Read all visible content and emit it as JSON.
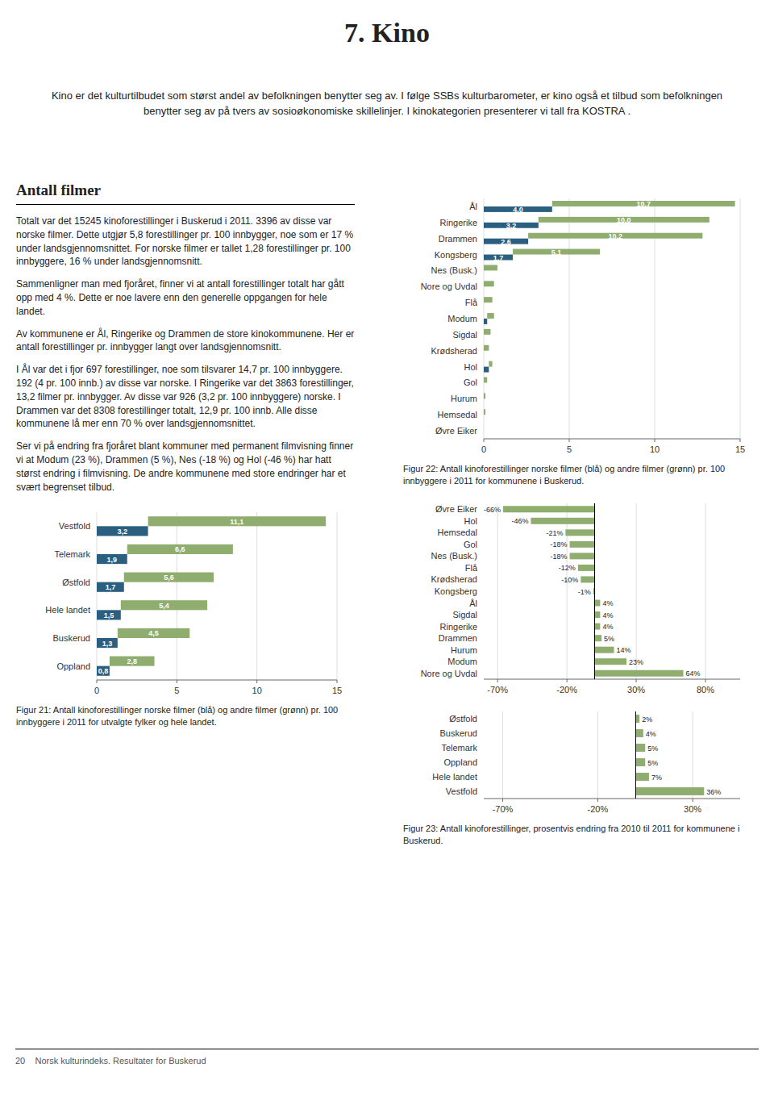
{
  "title": "7. Kino",
  "intro_text": "Kino er det kulturtilbudet som størst andel av befolkningen benytter seg av. I følge SSBs kulturbarometer, er kino også et tilbud som befolkningen benytter seg av på tvers av sosioøkonomiske skillelinjer. I kinokategorien presenterer vi tall fra KOSTRA .",
  "section_title": "Antall filmer",
  "section_texts": [
    "Totalt var det 15245 kinoforestillinger i Buskerud i 2011. 3396 av disse var norske filmer. Dette utgjør 5,8 forestillinger pr. 100 innbygger, noe som er 17 % under landsgjennomsnittet. For norske filmer er tallet 1,28 forestillinger pr. 100 innbyggere, 16 % under landsgjennomsnitt.",
    "Sammenligner man med fjoråret, finner vi at antall forestillinger totalt har gått opp med 4 %. Dette er noe lavere enn den generelle oppgangen for hele landet.",
    "Av kommunene er Ål, Ringerike og Drammen de store kinokommunene. Her er antall forestillinger pr. innbygger langt over landsgjennomsnitt.",
    "I Ål var det i fjor 697 forestillinger, noe som tilsvarer 14,7 pr. 100 innbyggere. 192 (4 pr. 100 innb.) av disse var norske. I Ringerike var det 3863 forestillinger, 13,2 filmer pr. innbygger. Av disse var 926 (3,2 pr. 100 innbyggere) norske. I Drammen var det 8308 forestillinger totalt, 12,9 pr. 100 innb. Alle disse kommunene lå mer enn 70 % over landsgjennomsnittet.",
    "Ser vi på endring fra fjoråret blant kommuner med permanent filmvisning finner vi at Modum (23 %), Drammen (5 %), Nes (-18 %) og Hol (-46 %) har hatt størst endring i filmvisning. De andre kommunene med store endringer har et svært begrenset tilbud."
  ],
  "footer_text": "20    Norsk kulturindeks. Resultater for Buskerud",
  "chart_data": [
    {
      "type": "bar",
      "orientation": "horizontal",
      "stacked": true,
      "data_labels": true,
      "grid": true,
      "title": "Figur 22: Antall kinoforestillinger norske filmer (blå) og andre filmer (grønn) pr. 100 innbyggere i 2011 for kommunene i Buskerud.",
      "categories": [
        "Øvre Eiker",
        "Hemsedal",
        "Hurum",
        "Gol",
        "Hol",
        "Krødsherad",
        "Sigdal",
        "Modum",
        "Flå",
        "Nore og Uvdal",
        "Nes (Busk.)",
        "Kongsberg",
        "Drammen",
        "Ringerike",
        "Ål"
      ],
      "series": [
        {
          "color": "#2a5f7f",
          "values": [
            0.0,
            0.0,
            0.0,
            0.0,
            0.3,
            0.0,
            0.0,
            0.2,
            0.0,
            0.0,
            0.0,
            1.7,
            2.6,
            3.2,
            4.0
          ],
          "value_labels": [
            null,
            null,
            null,
            null,
            null,
            null,
            null,
            null,
            null,
            null,
            null,
            "1,7",
            "2,6",
            "3,2",
            "4,0"
          ]
        },
        {
          "color": "#8fad6e",
          "values": [
            0.0,
            0.1,
            0.1,
            0.2,
            0.2,
            0.3,
            0.4,
            0.4,
            0.5,
            0.6,
            0.8,
            5.1,
            10.2,
            10.0,
            10.7
          ],
          "value_labels": [
            null,
            null,
            null,
            null,
            null,
            null,
            null,
            null,
            null,
            null,
            null,
            "5,1",
            "10,2",
            "10,0",
            "10,7"
          ]
        }
      ],
      "xlim": [
        0,
        15
      ],
      "xticks": [
        0,
        5,
        10,
        15
      ]
    },
    {
      "type": "bar",
      "orientation": "horizontal",
      "data_labels": true,
      "grid": true,
      "categories": [
        "Nore og Uvdal",
        "Modum",
        "Hurum",
        "Drammen",
        "Ringerike",
        "Sigdal",
        "Ål",
        "Kongsberg",
        "Krødsherad",
        "Flå",
        "Nes (Busk.)",
        "Gol",
        "Hemsedal",
        "Hol",
        "Øvre Eiker"
      ],
      "series": [
        {
          "color": "#8fad6e",
          "values": [
            64,
            23,
            14,
            5,
            4,
            4,
            4,
            -1,
            -10,
            -12,
            -18,
            -18,
            -21,
            -46,
            -66
          ],
          "value_labels": [
            "64%",
            "23%",
            "14%",
            "5%",
            "4%",
            "4%",
            "4%",
            "-1%",
            "-10%",
            "-12%",
            "-18%",
            "-18%",
            "-21%",
            "-46%",
            "-66%"
          ]
        }
      ],
      "xlim": [
        -80,
        105
      ],
      "xticks": [
        {
          "value": -70,
          "label": "-70%"
        },
        {
          "value": -20,
          "label": "-20%"
        },
        {
          "value": 30,
          "label": "30%"
        },
        {
          "value": 80,
          "label": "80%"
        }
      ]
    },
    {
      "type": "bar",
      "orientation": "horizontal",
      "data_labels": true,
      "grid": true,
      "title": "Figur 23: Antall kinoforestillinger, prosentvis endring fra 2010 til 2011 for kommunene i Buskerud.",
      "categories": [
        "Vestfold",
        "Hele landet",
        "Oppland",
        "Telemark",
        "Buskerud",
        "Østfold"
      ],
      "series": [
        {
          "color": "#8fad6e",
          "values": [
            36,
            7,
            5,
            5,
            4,
            2
          ],
          "value_labels": [
            "36%",
            "7%",
            "5%",
            "5%",
            "4%",
            "2%"
          ]
        }
      ],
      "xlim": [
        -80,
        55
      ],
      "xticks": [
        {
          "value": -70,
          "label": "-70%"
        },
        {
          "value": -20,
          "label": "-20%"
        },
        {
          "value": 30,
          "label": "30%"
        }
      ]
    },
    {
      "type": "bar",
      "orientation": "horizontal",
      "stacked": true,
      "data_labels": true,
      "grid": true,
      "title": "Figur 21: Antall kinoforestillinger norske filmer (blå) og andre filmer (grønn) pr. 100 innbyggere i 2011 for utvalgte fylker og hele landet.",
      "categories": [
        "Oppland",
        "Buskerud",
        "Hele landet",
        "Østfold",
        "Telemark",
        "Vestfold"
      ],
      "series": [
        {
          "color": "#2a5f7f",
          "values": [
            0.8,
            1.3,
            1.5,
            1.7,
            1.9,
            3.2
          ],
          "value_labels": [
            "0,8",
            "1,3",
            "1,5",
            "1,7",
            "1,9",
            "3,2"
          ]
        },
        {
          "color": "#8fad6e",
          "values": [
            2.8,
            4.5,
            5.4,
            5.6,
            6.6,
            11.1
          ],
          "value_labels": [
            "2,8",
            "4,5",
            "5,4",
            "5,6",
            "6,6",
            "11,1"
          ]
        }
      ],
      "xlim": [
        0,
        15
      ],
      "xticks": [
        0,
        5,
        10,
        15
      ]
    }
  ]
}
